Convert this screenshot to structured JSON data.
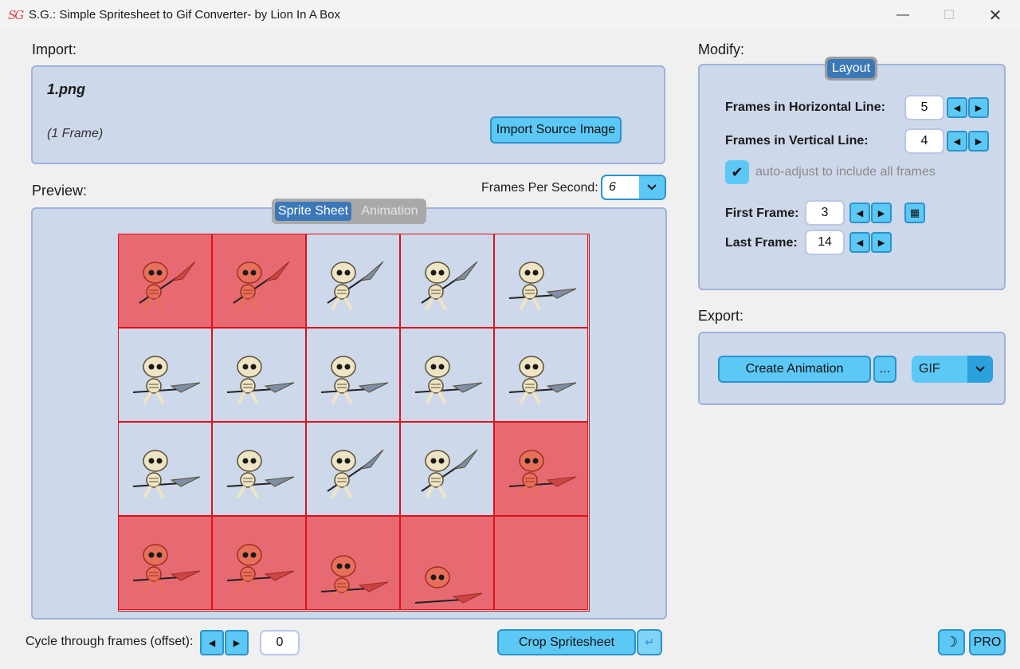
{
  "window": {
    "icon_text": "SG",
    "title": "S.G.: Simple Spritesheet to Gif Converter- by Lion In A Box",
    "minimize": "—",
    "maximize": "☐",
    "close": "✕"
  },
  "import": {
    "label": "Import:",
    "filename": "1.png",
    "frame_info": "(1 Frame)",
    "button": "Import Source Image"
  },
  "preview": {
    "label": "Preview:",
    "fps_label": "Frames Per Second:",
    "fps_value": "6",
    "tabs": {
      "sprite_sheet": "Sprite Sheet",
      "animation": "Animation"
    },
    "grid": {
      "columns": 5,
      "rows": 4,
      "cells": [
        {
          "excluded": true,
          "pose": "idle"
        },
        {
          "excluded": true,
          "pose": "idle"
        },
        {
          "excluded": false,
          "pose": "idle"
        },
        {
          "excluded": false,
          "pose": "idle"
        },
        {
          "excluded": false,
          "pose": "lunge"
        },
        {
          "excluded": false,
          "pose": "lunge"
        },
        {
          "excluded": false,
          "pose": "lunge"
        },
        {
          "excluded": false,
          "pose": "lunge"
        },
        {
          "excluded": false,
          "pose": "lunge"
        },
        {
          "excluded": false,
          "pose": "lunge"
        },
        {
          "excluded": false,
          "pose": "lunge"
        },
        {
          "excluded": false,
          "pose": "lunge"
        },
        {
          "excluded": false,
          "pose": "idle"
        },
        {
          "excluded": false,
          "pose": "idle"
        },
        {
          "excluded": true,
          "pose": "lunge"
        },
        {
          "excluded": true,
          "pose": "lunge"
        },
        {
          "excluded": true,
          "pose": "lunge"
        },
        {
          "excluded": true,
          "pose": "crouch"
        },
        {
          "excluded": true,
          "pose": "down"
        },
        {
          "excluded": true,
          "pose": "empty"
        }
      ]
    }
  },
  "cycle": {
    "label": "Cycle through frames (offset):",
    "value": "0",
    "prev": "◀",
    "next": "▶"
  },
  "crop": {
    "button": "Crop Spritesheet",
    "enter": "↵"
  },
  "modify": {
    "label": "Modify:",
    "layout_tab": "Layout",
    "horizontal_label": "Frames in Horizontal Line:",
    "horizontal_value": "5",
    "vertical_label": "Frames in Vertical Line:",
    "vertical_value": "4",
    "auto_adjust_label": "auto-adjust to include all frames",
    "auto_adjust_checked": true,
    "first_frame_label": "First Frame:",
    "first_frame_value": "3",
    "last_frame_label": "Last Frame:",
    "last_frame_value": "14",
    "prev": "◀",
    "next": "▶",
    "grid_icon": "▦",
    "checkmark": "✔"
  },
  "export": {
    "label": "Export:",
    "create_button": "Create Animation",
    "more_button": "...",
    "format_value": "GIF"
  },
  "footer": {
    "moon_icon": "☽",
    "pro_button": "PRO"
  },
  "colors": {
    "panel": "#cdd8ea",
    "panel_border": "#9eb2dc",
    "button": "#5bc8f5",
    "button_border": "#2a93cc",
    "excluded_cell": "#e76a72",
    "grid_line": "#e0101a",
    "active_tab": "#3c78b8"
  }
}
